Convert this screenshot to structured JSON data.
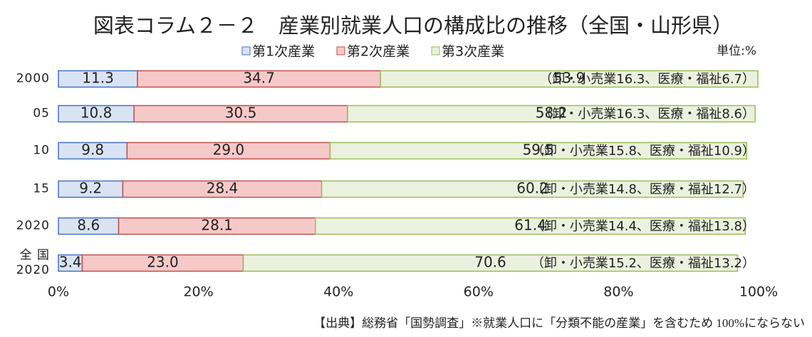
{
  "chart_data": {
    "type": "stacked-bar-horizontal",
    "title": "図表コラム２－２　産業別就業人口の構成比の推移（全国・山形県）",
    "unit": "単位:%",
    "categories": [
      "2000",
      "05",
      "10",
      "15",
      "2020",
      "全 国\n2020"
    ],
    "series": [
      {
        "name": "第1次産業",
        "color": "#dae3f3",
        "border": "#4472c4",
        "values": [
          11.3,
          10.8,
          9.8,
          9.2,
          8.6,
          3.4
        ]
      },
      {
        "name": "第2次産業",
        "color": "#f6c9c9",
        "border": "#c0504d",
        "values": [
          34.7,
          30.5,
          29.0,
          28.4,
          28.1,
          23.0
        ],
        "value_labels": [
          "34.7",
          "30.5",
          "29.0",
          "28.4",
          "28.1",
          "23.0"
        ]
      },
      {
        "name": "第3次産業",
        "color": "#ebf1de",
        "border": "#9bbb59",
        "values": [
          53.9,
          58.2,
          59.5,
          60.2,
          61.4,
          70.6
        ]
      }
    ],
    "annotations": [
      "（卸・小売業16.3、医療・福祉6.7）",
      "（卸・小売業16.3、医療・福祉8.6）",
      "（卸・小売業15.8、医療・福祉10.9）",
      "（卸・小売業14.8、医療・福祉12.7）",
      "（卸・小売業14.4、医療・福祉13.8）",
      "（卸・小売業15.2、医療・福祉13.2）"
    ],
    "xlim": [
      0,
      100
    ],
    "xticks": [
      {
        "value": 0,
        "label": "0%"
      },
      {
        "value": 20,
        "label": "20%"
      },
      {
        "value": 40,
        "label": "40%"
      },
      {
        "value": 60,
        "label": "60%"
      },
      {
        "value": 80,
        "label": "80%"
      },
      {
        "value": 100,
        "label": "100%"
      }
    ],
    "source": "【出典】総務省「国勢調査」※就業人口に「分類不能の産業」を含むため 100%にならない"
  }
}
